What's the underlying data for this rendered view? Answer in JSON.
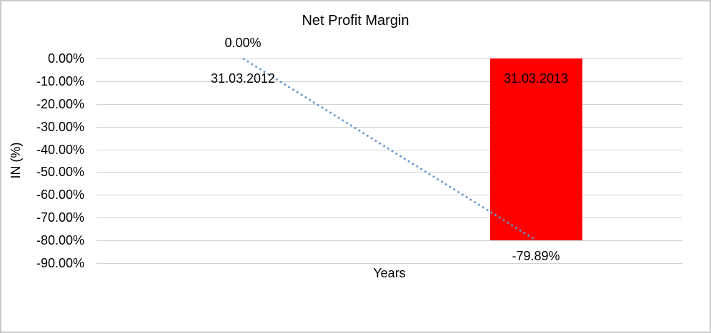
{
  "chart_data": {
    "type": "bar",
    "title": "Net Profit Margin",
    "xlabel": "Years",
    "ylabel": "IN (%)",
    "categories": [
      "31.03.2012",
      "31.03.2013"
    ],
    "series": [
      {
        "name": "Net Profit Margin",
        "values": [
          0,
          -79.89
        ]
      }
    ],
    "data_labels": [
      "0.00%",
      "-79.89%"
    ],
    "ytick_labels": [
      "0.00%",
      "-10.00%",
      "-20.00%",
      "-30.00%",
      "-40.00%",
      "-50.00%",
      "-60.00%",
      "-70.00%",
      "-80.00%",
      "-90.00%"
    ],
    "ylim": [
      -90,
      0
    ],
    "ytick_step": 10,
    "grid": true,
    "legend": "none",
    "bar_color": "#ff0000",
    "gridline_color": "#d3d3d3",
    "text_color": "#000000",
    "trendline": {
      "type": "linear",
      "style": "dotted",
      "color": "#6496cd",
      "points": [
        [
          0,
          0
        ],
        [
          1,
          -79.89
        ]
      ]
    }
  }
}
